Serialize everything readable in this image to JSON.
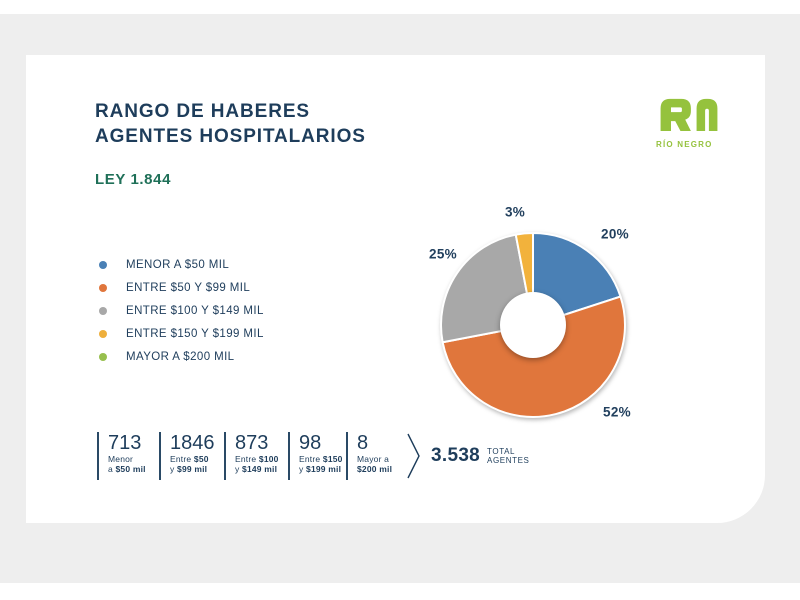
{
  "header": {
    "title_line1": "RANGO DE HABERES",
    "title_line2": "AGENTES HOSPITALARIOS",
    "law": "LEY 1.844"
  },
  "logo": {
    "mark": "RN",
    "name": "RÍO NEGRO",
    "color": "#95c23d"
  },
  "legend": [
    {
      "label": "MENOR A $50 MIL",
      "color": "#4a80b5"
    },
    {
      "label": "ENTRE $50 Y $99 MIL",
      "color": "#e0763c"
    },
    {
      "label": "ENTRE $100 Y $149 MIL",
      "color": "#a8a8a8"
    },
    {
      "label": "ENTRE $150 Y $199 MIL",
      "color": "#eeaf3c"
    },
    {
      "label": "MAYOR A $200 MIL",
      "color": "#97bf4e"
    }
  ],
  "chart_data": {
    "type": "pie",
    "subtype": "donut",
    "title": "RANGO DE HABERES AGENTES HOSPITALARIOS",
    "subtitle": "LEY 1.844",
    "categories": [
      "MENOR A $50 MIL",
      "ENTRE $50 Y $99 MIL",
      "ENTRE $100 Y $149 MIL",
      "ENTRE $150 Y $199 MIL",
      "MAYOR A $200 MIL"
    ],
    "values_pct": [
      20,
      52,
      25,
      3,
      0
    ],
    "counts": [
      713,
      1846,
      873,
      98,
      8
    ],
    "total": 3538,
    "colors": [
      "#4a80b5",
      "#e0763c",
      "#a8a8a8",
      "#f2b23c",
      "#97bf4e"
    ],
    "pct_labels": [
      "20%",
      "52%",
      "25%",
      "3%"
    ],
    "start_angle": "top",
    "direction": "clockwise",
    "legend_position": "left",
    "grid": false
  },
  "stats": {
    "items": [
      {
        "value": "713",
        "lines": [
          [
            [
              "Menor",
              0
            ]
          ],
          [
            [
              "a ",
              0
            ],
            [
              "$50 mil",
              1
            ]
          ]
        ]
      },
      {
        "value": "1846",
        "lines": [
          [
            [
              "Entre ",
              0
            ],
            [
              "$50",
              1
            ]
          ],
          [
            [
              "y ",
              0
            ],
            [
              "$99 mil",
              1
            ]
          ]
        ]
      },
      {
        "value": "873",
        "lines": [
          [
            [
              "Entre ",
              0
            ],
            [
              "$100",
              1
            ]
          ],
          [
            [
              "y ",
              0
            ],
            [
              "$149 mil",
              1
            ]
          ]
        ]
      },
      {
        "value": "98",
        "lines": [
          [
            [
              "Entre ",
              0
            ],
            [
              "$150",
              1
            ]
          ],
          [
            [
              "y ",
              0
            ],
            [
              "$199 mil",
              1
            ]
          ]
        ]
      },
      {
        "value": "8",
        "lines": [
          [
            [
              "Mayor a",
              0
            ]
          ],
          [
            [
              "$200 mil",
              1
            ]
          ]
        ]
      }
    ],
    "total_value": "3.538",
    "total_label": [
      "TOTAL",
      "AGENTES"
    ]
  }
}
